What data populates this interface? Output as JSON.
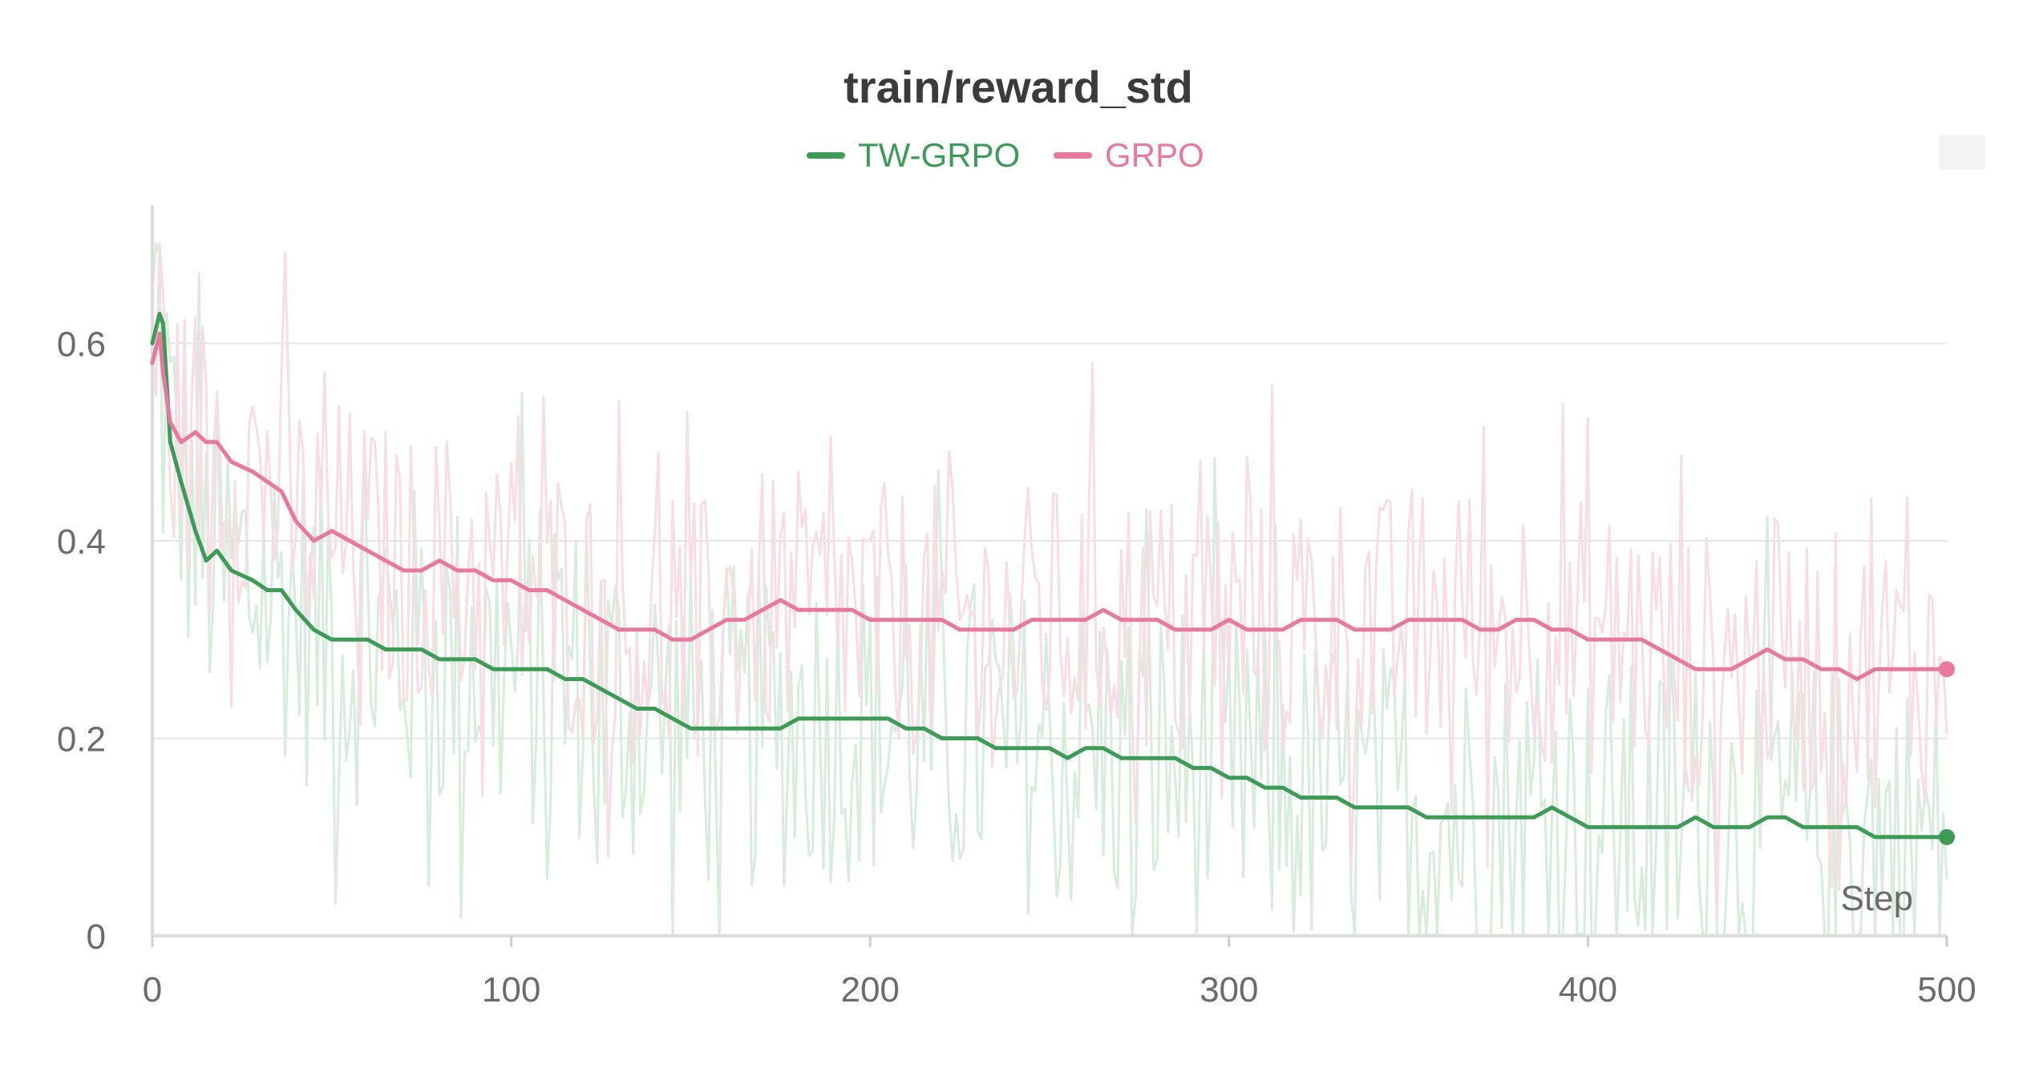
{
  "chart_data": {
    "type": "line",
    "title": "train/reward_std",
    "xlabel": "Step",
    "ylabel": "",
    "xlim": [
      0,
      500
    ],
    "ylim": [
      0,
      0.74
    ],
    "x_ticks": [
      0,
      100,
      200,
      300,
      400,
      500
    ],
    "y_ticks": [
      0,
      0.2,
      0.4,
      0.6
    ],
    "x_tick_labels": [
      "0",
      "100",
      "200",
      "300",
      "400",
      "500"
    ],
    "y_tick_labels": [
      "0",
      "0.2",
      "0.4",
      "0.6"
    ],
    "grid": true,
    "legend_position": "top-center",
    "series": [
      {
        "name": "TW-GRPO",
        "color": "#3d9a57",
        "raw_color": "#d5ebdb",
        "x": [
          0,
          2,
          3,
          5,
          8,
          12,
          15,
          18,
          22,
          28,
          32,
          36,
          40,
          45,
          50,
          55,
          60,
          65,
          70,
          75,
          80,
          85,
          90,
          95,
          100,
          105,
          110,
          115,
          120,
          125,
          130,
          135,
          140,
          145,
          150,
          155,
          160,
          165,
          170,
          175,
          180,
          185,
          190,
          195,
          200,
          205,
          210,
          215,
          220,
          225,
          230,
          235,
          240,
          245,
          250,
          255,
          260,
          265,
          270,
          275,
          280,
          285,
          290,
          295,
          300,
          305,
          310,
          315,
          320,
          325,
          330,
          335,
          340,
          345,
          350,
          355,
          360,
          365,
          370,
          375,
          380,
          385,
          390,
          395,
          400,
          405,
          410,
          415,
          420,
          425,
          430,
          435,
          440,
          445,
          450,
          455,
          460,
          465,
          470,
          475,
          480,
          485,
          490,
          495,
          500
        ],
        "y": [
          0.6,
          0.63,
          0.62,
          0.5,
          0.46,
          0.41,
          0.38,
          0.39,
          0.37,
          0.36,
          0.35,
          0.35,
          0.33,
          0.31,
          0.3,
          0.3,
          0.3,
          0.29,
          0.29,
          0.29,
          0.28,
          0.28,
          0.28,
          0.27,
          0.27,
          0.27,
          0.27,
          0.26,
          0.26,
          0.25,
          0.24,
          0.23,
          0.23,
          0.22,
          0.21,
          0.21,
          0.21,
          0.21,
          0.21,
          0.21,
          0.22,
          0.22,
          0.22,
          0.22,
          0.22,
          0.22,
          0.21,
          0.21,
          0.2,
          0.2,
          0.2,
          0.19,
          0.19,
          0.19,
          0.19,
          0.18,
          0.19,
          0.19,
          0.18,
          0.18,
          0.18,
          0.18,
          0.17,
          0.17,
          0.16,
          0.16,
          0.15,
          0.15,
          0.14,
          0.14,
          0.14,
          0.13,
          0.13,
          0.13,
          0.13,
          0.12,
          0.12,
          0.12,
          0.12,
          0.12,
          0.12,
          0.12,
          0.13,
          0.12,
          0.11,
          0.11,
          0.11,
          0.11,
          0.11,
          0.11,
          0.12,
          0.11,
          0.11,
          0.11,
          0.12,
          0.12,
          0.11,
          0.11,
          0.11,
          0.11,
          0.1,
          0.1,
          0.1,
          0.1,
          0.1
        ]
      },
      {
        "name": "GRPO",
        "color": "#e7799d",
        "raw_color": "#f9dbe4",
        "x": [
          0,
          2,
          3,
          5,
          8,
          12,
          15,
          18,
          22,
          28,
          32,
          36,
          40,
          45,
          50,
          55,
          60,
          65,
          70,
          75,
          80,
          85,
          90,
          95,
          100,
          105,
          110,
          115,
          120,
          125,
          130,
          135,
          140,
          145,
          150,
          155,
          160,
          165,
          170,
          175,
          180,
          185,
          190,
          195,
          200,
          205,
          210,
          215,
          220,
          225,
          230,
          235,
          240,
          245,
          250,
          255,
          260,
          265,
          270,
          275,
          280,
          285,
          290,
          295,
          300,
          305,
          310,
          315,
          320,
          325,
          330,
          335,
          340,
          345,
          350,
          355,
          360,
          365,
          370,
          375,
          380,
          385,
          390,
          395,
          400,
          405,
          410,
          415,
          420,
          425,
          430,
          435,
          440,
          445,
          450,
          455,
          460,
          465,
          470,
          475,
          480,
          485,
          490,
          495,
          500
        ],
        "y": [
          0.58,
          0.61,
          0.57,
          0.52,
          0.5,
          0.51,
          0.5,
          0.5,
          0.48,
          0.47,
          0.46,
          0.45,
          0.42,
          0.4,
          0.41,
          0.4,
          0.39,
          0.38,
          0.37,
          0.37,
          0.38,
          0.37,
          0.37,
          0.36,
          0.36,
          0.35,
          0.35,
          0.34,
          0.33,
          0.32,
          0.31,
          0.31,
          0.31,
          0.3,
          0.3,
          0.31,
          0.32,
          0.32,
          0.33,
          0.34,
          0.33,
          0.33,
          0.33,
          0.33,
          0.32,
          0.32,
          0.32,
          0.32,
          0.32,
          0.31,
          0.31,
          0.31,
          0.31,
          0.32,
          0.32,
          0.32,
          0.32,
          0.33,
          0.32,
          0.32,
          0.32,
          0.31,
          0.31,
          0.31,
          0.32,
          0.31,
          0.31,
          0.31,
          0.32,
          0.32,
          0.32,
          0.31,
          0.31,
          0.31,
          0.32,
          0.32,
          0.32,
          0.32,
          0.31,
          0.31,
          0.32,
          0.32,
          0.31,
          0.31,
          0.3,
          0.3,
          0.3,
          0.3,
          0.29,
          0.28,
          0.27,
          0.27,
          0.27,
          0.28,
          0.29,
          0.28,
          0.28,
          0.27,
          0.27,
          0.26,
          0.27,
          0.27,
          0.27,
          0.27,
          0.27
        ]
      }
    ]
  }
}
